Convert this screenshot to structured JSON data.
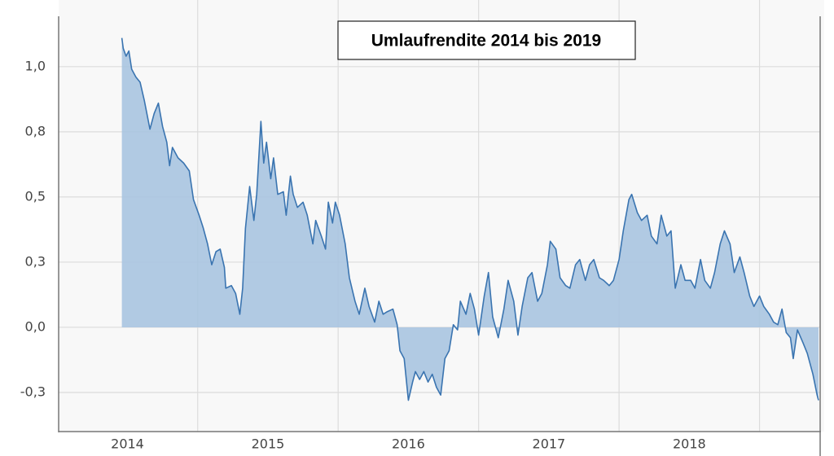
{
  "chart_data": {
    "type": "area",
    "title": "Umlaufrendite 2014 bis 2019",
    "color": "#3a74b0",
    "fill": "#a9c4e0",
    "grid": true,
    "xlim": [
      2014.01,
      2019.42
    ],
    "ylim": [
      -0.4,
      1.19
    ],
    "yticks": [
      {
        "value": -0.25,
        "label": "-0,3"
      },
      {
        "value": 0,
        "label": "0,0"
      },
      {
        "value": 0.25,
        "label": "0,3"
      },
      {
        "value": 0.5,
        "label": "0,5"
      },
      {
        "value": 0.75,
        "label": "0,8"
      },
      {
        "value": 1,
        "label": "1,0"
      }
    ],
    "xticks": [
      {
        "value": 2014.5,
        "label": "2014"
      },
      {
        "value": 2015.5,
        "label": "2015"
      },
      {
        "value": 2016.5,
        "label": "2016"
      },
      {
        "value": 2017.5,
        "label": "2017"
      },
      {
        "value": 2018.5,
        "label": "2018"
      }
    ],
    "xgrid": [
      2015,
      2016,
      2017,
      2018,
      2019
    ],
    "x": [
      2014.46,
      2014.47,
      2014.49,
      2014.51,
      2014.53,
      2014.56,
      2014.59,
      2014.62,
      2014.66,
      2014.69,
      2014.72,
      2014.75,
      2014.78,
      2014.8,
      2014.82,
      2014.86,
      2014.9,
      2014.94,
      2014.97,
      2015.01,
      2015.04,
      2015.07,
      2015.1,
      2015.13,
      2015.16,
      2015.19,
      2015.2,
      2015.24,
      2015.27,
      2015.3,
      2015.32,
      2015.34,
      2015.37,
      2015.4,
      2015.42,
      2015.45,
      2015.47,
      2015.49,
      2015.52,
      2015.54,
      2015.57,
      2015.61,
      2015.63,
      2015.66,
      2015.68,
      2015.71,
      2015.75,
      2015.78,
      2015.82,
      2015.84,
      2015.88,
      2015.91,
      2015.93,
      2015.96,
      2015.98,
      2016.01,
      2016.05,
      2016.08,
      2016.12,
      2016.15,
      2016.19,
      2016.22,
      2016.26,
      2016.29,
      2016.32,
      2016.35,
      2016.39,
      2016.42,
      2016.44,
      2016.47,
      2016.5,
      2016.53,
      2016.55,
      2016.58,
      2016.61,
      2016.64,
      2016.67,
      2016.7,
      2016.73,
      2016.76,
      2016.79,
      2016.82,
      2016.85,
      2016.87,
      2016.91,
      2016.94,
      2016.97,
      2017.0,
      2017.04,
      2017.07,
      2017.1,
      2017.14,
      2017.18,
      2017.21,
      2017.25,
      2017.28,
      2017.31,
      2017.35,
      2017.38,
      2017.42,
      2017.45,
      2017.49,
      2017.51,
      2017.55,
      2017.58,
      2017.62,
      2017.65,
      2017.69,
      2017.72,
      2017.76,
      2017.79,
      2017.82,
      2017.86,
      2017.89,
      2017.93,
      2017.96,
      2018.0,
      2018.03,
      2018.07,
      2018.09,
      2018.13,
      2018.16,
      2018.2,
      2018.23,
      2018.27,
      2018.3,
      2018.34,
      2018.37,
      2018.4,
      2018.44,
      2018.47,
      2018.51,
      2018.54,
      2018.58,
      2018.61,
      2018.65,
      2018.68,
      2018.72,
      2018.75,
      2018.79,
      2018.82,
      2018.86,
      2018.89,
      2018.93,
      2018.96,
      2019.0,
      2019.03,
      2019.07,
      2019.1,
      2019.13,
      2019.16,
      2019.19,
      2019.22,
      2019.24,
      2019.27,
      2019.31,
      2019.34,
      2019.38,
      2019.41,
      2019.42
    ],
    "values": [
      1.11,
      1.07,
      1.04,
      1.06,
      0.99,
      0.96,
      0.94,
      0.87,
      0.76,
      0.82,
      0.86,
      0.77,
      0.71,
      0.62,
      0.69,
      0.65,
      0.63,
      0.6,
      0.49,
      0.43,
      0.38,
      0.32,
      0.24,
      0.29,
      0.3,
      0.23,
      0.15,
      0.16,
      0.13,
      0.05,
      0.15,
      0.38,
      0.54,
      0.41,
      0.51,
      0.79,
      0.63,
      0.71,
      0.57,
      0.65,
      0.51,
      0.52,
      0.43,
      0.58,
      0.51,
      0.46,
      0.48,
      0.43,
      0.32,
      0.41,
      0.35,
      0.3,
      0.48,
      0.4,
      0.48,
      0.43,
      0.32,
      0.19,
      0.1,
      0.05,
      0.15,
      0.08,
      0.02,
      0.1,
      0.05,
      0.06,
      0.07,
      0.01,
      -0.09,
      -0.12,
      -0.28,
      -0.21,
      -0.17,
      -0.2,
      -0.17,
      -0.21,
      -0.18,
      -0.23,
      -0.26,
      -0.12,
      -0.09,
      0.01,
      -0.01,
      0.1,
      0.05,
      0.13,
      0.07,
      -0.03,
      0.12,
      0.21,
      0.04,
      -0.04,
      0.07,
      0.18,
      0.1,
      -0.03,
      0.08,
      0.19,
      0.21,
      0.1,
      0.13,
      0.24,
      0.33,
      0.3,
      0.19,
      0.16,
      0.15,
      0.24,
      0.26,
      0.18,
      0.24,
      0.26,
      0.19,
      0.18,
      0.16,
      0.18,
      0.26,
      0.37,
      0.49,
      0.51,
      0.44,
      0.41,
      0.43,
      0.35,
      0.32,
      0.43,
      0.35,
      0.37,
      0.15,
      0.24,
      0.18,
      0.18,
      0.15,
      0.26,
      0.18,
      0.15,
      0.21,
      0.32,
      0.37,
      0.32,
      0.21,
      0.27,
      0.21,
      0.12,
      0.08,
      0.12,
      0.08,
      0.05,
      0.02,
      0.01,
      0.07,
      -0.02,
      -0.04,
      -0.12,
      -0.01,
      -0.06,
      -0.1,
      -0.18,
      -0.26,
      -0.28
    ]
  }
}
